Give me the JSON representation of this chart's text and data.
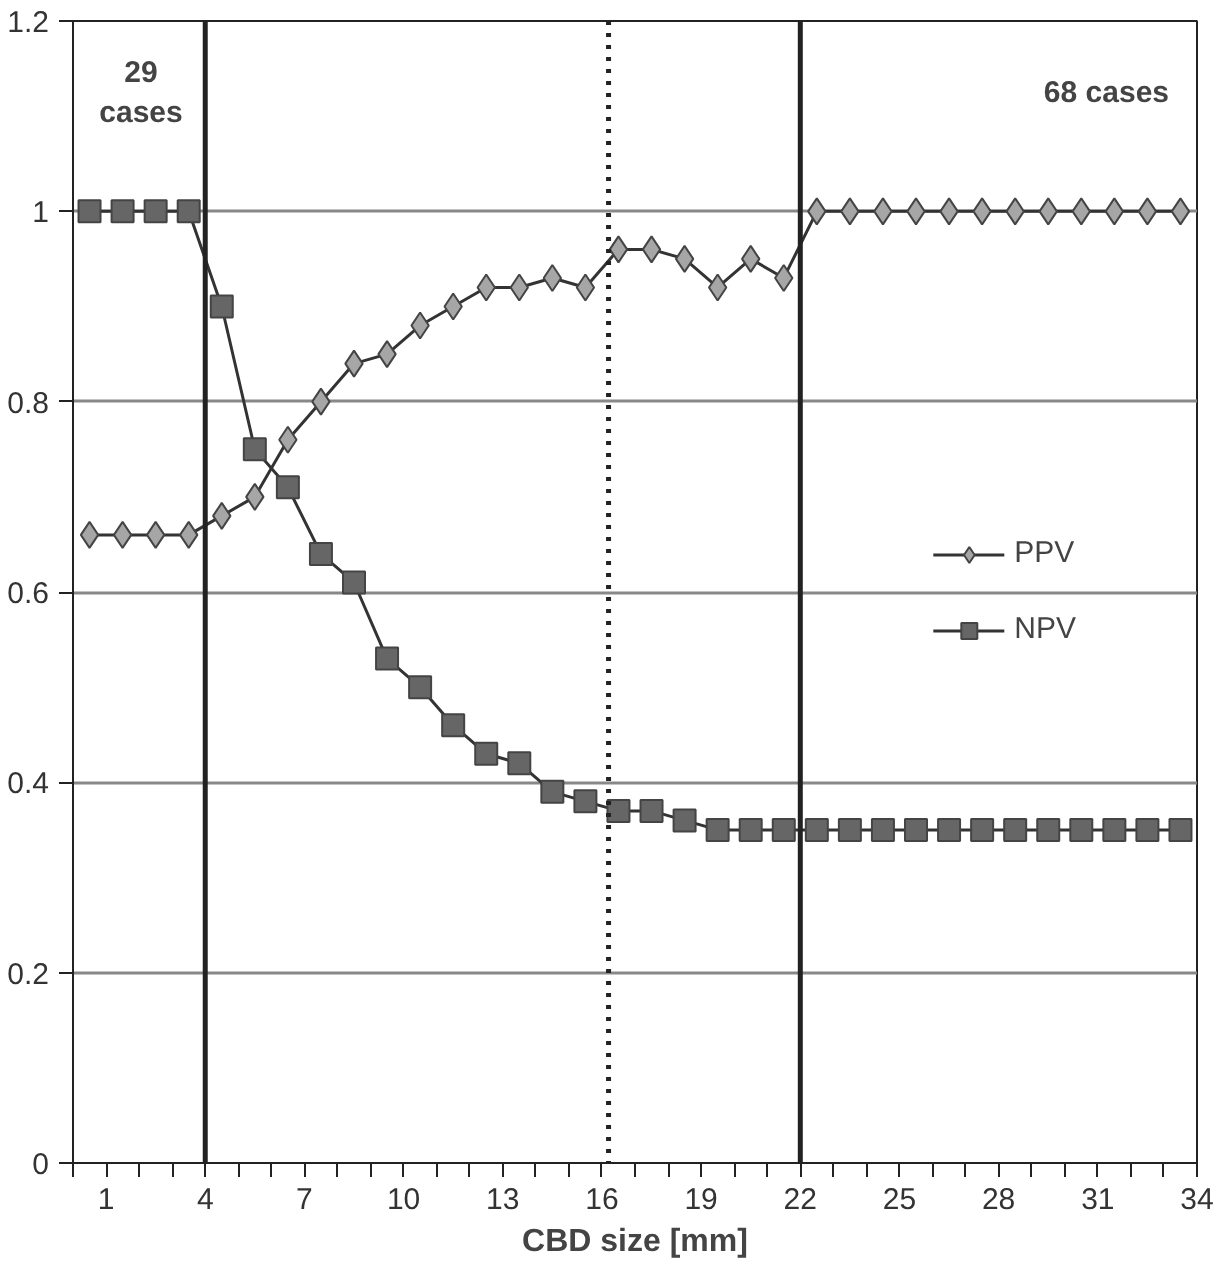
{
  "chart_data": {
    "type": "line",
    "xlabel": "CBD size [mm]",
    "x": [
      0.5,
      1.5,
      2.5,
      3.5,
      4.5,
      5.5,
      6.5,
      7.5,
      8.5,
      9.5,
      10.5,
      11.5,
      12.5,
      13.5,
      14.5,
      15.5,
      16.5,
      17.5,
      18.5,
      19.5,
      20.5,
      21.5,
      22.5,
      23.5,
      24.5,
      25.5,
      26.5,
      27.5,
      28.5,
      29.5,
      30.5,
      31.5,
      32.5,
      33.5
    ],
    "series": [
      {
        "name": "PPV",
        "color": "#a6a6a6",
        "marker": "diamond",
        "values": [
          0.66,
          0.66,
          0.66,
          0.66,
          0.68,
          0.7,
          0.76,
          0.8,
          0.84,
          0.85,
          0.88,
          0.9,
          0.92,
          0.92,
          0.93,
          0.92,
          0.96,
          0.96,
          0.95,
          0.92,
          0.95,
          0.93,
          1,
          1,
          1,
          1,
          1,
          1,
          1,
          1,
          1,
          1,
          1,
          1
        ]
      },
      {
        "name": "NPV",
        "color": "#666666",
        "marker": "square",
        "values": [
          1,
          1,
          1,
          1,
          0.9,
          0.75,
          0.71,
          0.64,
          0.61,
          0.53,
          0.5,
          0.46,
          0.43,
          0.42,
          0.39,
          0.38,
          0.37,
          0.37,
          0.36,
          0.35,
          0.35,
          0.35,
          0.35,
          0.35,
          0.35,
          0.35,
          0.35,
          0.35,
          0.35,
          0.35,
          0.35,
          0.35,
          0.35,
          0.35
        ]
      }
    ],
    "xlim": [
      0,
      34
    ],
    "xticks": [
      {
        "value": 0,
        "label": null
      },
      1,
      {
        "value": 2,
        "label": null
      },
      {
        "value": 3,
        "label": null
      },
      4,
      {
        "value": 5,
        "label": null
      },
      {
        "value": 6,
        "label": null
      },
      7,
      {
        "value": 8,
        "label": null
      },
      {
        "value": 9,
        "label": null
      },
      10,
      {
        "value": 11,
        "label": null
      },
      {
        "value": 12,
        "label": null
      },
      13,
      {
        "value": 14,
        "label": null
      },
      {
        "value": 15,
        "label": null
      },
      16,
      {
        "value": 17,
        "label": null
      },
      {
        "value": 18,
        "label": null
      },
      19,
      {
        "value": 20,
        "label": null
      },
      {
        "value": 21,
        "label": null
      },
      22,
      {
        "value": 23,
        "label": null
      },
      {
        "value": 24,
        "label": null
      },
      25,
      {
        "value": 26,
        "label": null
      },
      {
        "value": 27,
        "label": null
      },
      28,
      {
        "value": 29,
        "label": null
      },
      {
        "value": 30,
        "label": null
      },
      31,
      {
        "value": 32,
        "label": null
      },
      {
        "value": 33,
        "label": null
      },
      34
    ],
    "ylim": [
      0,
      1.2
    ],
    "yticks": [
      0,
      0.2,
      0.4,
      0.6,
      0.8,
      1,
      1.2
    ],
    "grid": "y",
    "legend": "right",
    "ref_lines": [
      {
        "axis": "x",
        "value": 4,
        "label": null,
        "color": "#222222",
        "line_style": "solid"
      },
      {
        "axis": "x",
        "value": 16.2,
        "label": null,
        "color": "#222222",
        "line_style": "dotted"
      },
      {
        "axis": "x",
        "value": 22,
        "label": null,
        "color": "#222222",
        "line_style": "solid"
      }
    ],
    "annotations": [
      "29\ncases",
      "68 cases"
    ]
  }
}
